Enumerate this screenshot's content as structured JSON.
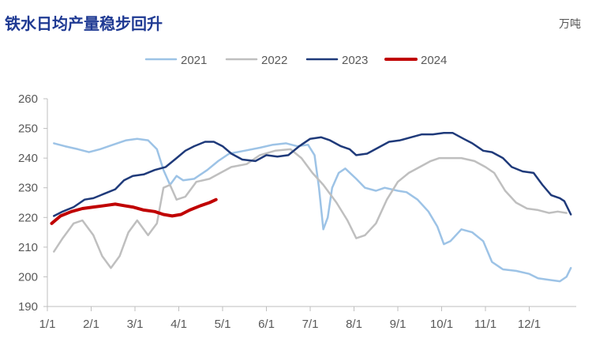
{
  "chart_data": {
    "type": "line",
    "title": "铁水日均产量稳步回升",
    "unit": "万吨",
    "xlabel": "",
    "ylabel": "",
    "ylim": [
      190,
      260
    ],
    "yticks": [
      190,
      200,
      210,
      220,
      230,
      240,
      250,
      260
    ],
    "xlim": [
      0,
      12
    ],
    "xticks": [
      {
        "pos": 0,
        "label": "1/1"
      },
      {
        "pos": 1,
        "label": "2/1"
      },
      {
        "pos": 2,
        "label": "3/1"
      },
      {
        "pos": 3,
        "label": "4/1"
      },
      {
        "pos": 4,
        "label": "5/1"
      },
      {
        "pos": 5,
        "label": "6/1"
      },
      {
        "pos": 6,
        "label": "7/1"
      },
      {
        "pos": 7,
        "label": "8/1"
      },
      {
        "pos": 8,
        "label": "9/1"
      },
      {
        "pos": 9,
        "label": "10/1"
      },
      {
        "pos": 10,
        "label": "11/1"
      },
      {
        "pos": 11,
        "label": "12/1"
      }
    ],
    "grid": false,
    "legend": "top-center",
    "series": [
      {
        "name": "2021",
        "color": "#9dc3e6",
        "width": 2.5,
        "points": [
          [
            0.15,
            245
          ],
          [
            0.4,
            244
          ],
          [
            0.7,
            243
          ],
          [
            0.95,
            242
          ],
          [
            1.2,
            243
          ],
          [
            1.5,
            244.5
          ],
          [
            1.8,
            246
          ],
          [
            2.05,
            246.5
          ],
          [
            2.3,
            246
          ],
          [
            2.5,
            243
          ],
          [
            2.65,
            236
          ],
          [
            2.8,
            231
          ],
          [
            2.95,
            234
          ],
          [
            3.1,
            232.5
          ],
          [
            3.35,
            233
          ],
          [
            3.65,
            236
          ],
          [
            3.9,
            239
          ],
          [
            4.15,
            241.5
          ],
          [
            4.5,
            242.5
          ],
          [
            4.85,
            243.5
          ],
          [
            5.15,
            244.5
          ],
          [
            5.45,
            245
          ],
          [
            5.7,
            244
          ],
          [
            5.95,
            244.5
          ],
          [
            6.1,
            241
          ],
          [
            6.2,
            230
          ],
          [
            6.3,
            216
          ],
          [
            6.4,
            220
          ],
          [
            6.5,
            230
          ],
          [
            6.65,
            235
          ],
          [
            6.8,
            236.5
          ],
          [
            7.05,
            233
          ],
          [
            7.25,
            230
          ],
          [
            7.5,
            229
          ],
          [
            7.7,
            230
          ],
          [
            8.0,
            229
          ],
          [
            8.2,
            228.5
          ],
          [
            8.45,
            226
          ],
          [
            8.7,
            222
          ],
          [
            8.9,
            217
          ],
          [
            9.05,
            211
          ],
          [
            9.2,
            212
          ],
          [
            9.45,
            216
          ],
          [
            9.7,
            215
          ],
          [
            9.95,
            212
          ],
          [
            10.15,
            205
          ],
          [
            10.4,
            202.5
          ],
          [
            10.7,
            202
          ],
          [
            11.0,
            201
          ],
          [
            11.2,
            199.5
          ],
          [
            11.45,
            199
          ],
          [
            11.7,
            198.5
          ],
          [
            11.85,
            200
          ],
          [
            11.95,
            203
          ]
        ]
      },
      {
        "name": "2022",
        "color": "#bfbfbf",
        "width": 2.5,
        "points": [
          [
            0.15,
            208.5
          ],
          [
            0.35,
            213
          ],
          [
            0.6,
            218
          ],
          [
            0.8,
            219
          ],
          [
            1.05,
            214
          ],
          [
            1.25,
            207
          ],
          [
            1.45,
            203
          ],
          [
            1.65,
            207
          ],
          [
            1.85,
            215
          ],
          [
            2.05,
            219
          ],
          [
            2.3,
            214
          ],
          [
            2.5,
            218
          ],
          [
            2.65,
            230
          ],
          [
            2.8,
            231
          ],
          [
            2.95,
            226
          ],
          [
            3.15,
            227
          ],
          [
            3.4,
            232
          ],
          [
            3.7,
            233
          ],
          [
            3.95,
            235
          ],
          [
            4.2,
            237
          ],
          [
            4.55,
            238
          ],
          [
            4.85,
            241
          ],
          [
            5.2,
            242.5
          ],
          [
            5.55,
            243
          ],
          [
            5.8,
            240
          ],
          [
            6.05,
            235
          ],
          [
            6.3,
            231
          ],
          [
            6.6,
            225
          ],
          [
            6.85,
            219
          ],
          [
            7.05,
            213
          ],
          [
            7.25,
            214
          ],
          [
            7.5,
            218
          ],
          [
            7.75,
            226
          ],
          [
            8.0,
            232
          ],
          [
            8.25,
            235
          ],
          [
            8.5,
            237
          ],
          [
            8.75,
            239
          ],
          [
            8.95,
            240
          ],
          [
            9.2,
            240
          ],
          [
            9.45,
            240
          ],
          [
            9.75,
            239
          ],
          [
            10.0,
            237
          ],
          [
            10.2,
            235
          ],
          [
            10.45,
            229
          ],
          [
            10.7,
            225
          ],
          [
            10.95,
            223
          ],
          [
            11.2,
            222.5
          ],
          [
            11.45,
            221.5
          ],
          [
            11.65,
            222
          ],
          [
            11.85,
            221.5
          ]
        ]
      },
      {
        "name": "2023",
        "color": "#1f3a7a",
        "width": 2.5,
        "points": [
          [
            0.15,
            220.5
          ],
          [
            0.35,
            222
          ],
          [
            0.6,
            223.5
          ],
          [
            0.85,
            226
          ],
          [
            1.05,
            226.5
          ],
          [
            1.3,
            228
          ],
          [
            1.55,
            229.5
          ],
          [
            1.75,
            232.5
          ],
          [
            1.95,
            234
          ],
          [
            2.2,
            234.5
          ],
          [
            2.45,
            236
          ],
          [
            2.7,
            237
          ],
          [
            2.95,
            240
          ],
          [
            3.15,
            242.5
          ],
          [
            3.35,
            244
          ],
          [
            3.6,
            245.5
          ],
          [
            3.8,
            245.5
          ],
          [
            4.0,
            244
          ],
          [
            4.2,
            241.5
          ],
          [
            4.45,
            239.5
          ],
          [
            4.75,
            239
          ],
          [
            5.0,
            241
          ],
          [
            5.25,
            240.5
          ],
          [
            5.5,
            241
          ],
          [
            5.75,
            244
          ],
          [
            6.0,
            246.5
          ],
          [
            6.25,
            247
          ],
          [
            6.45,
            246
          ],
          [
            6.7,
            244
          ],
          [
            6.9,
            243
          ],
          [
            7.05,
            241
          ],
          [
            7.3,
            241.5
          ],
          [
            7.55,
            243.5
          ],
          [
            7.8,
            245.5
          ],
          [
            8.05,
            246
          ],
          [
            8.3,
            247
          ],
          [
            8.55,
            248
          ],
          [
            8.8,
            248
          ],
          [
            9.05,
            248.5
          ],
          [
            9.25,
            248.5
          ],
          [
            9.5,
            246.5
          ],
          [
            9.7,
            245
          ],
          [
            9.95,
            242.5
          ],
          [
            10.15,
            242
          ],
          [
            10.4,
            240
          ],
          [
            10.6,
            237
          ],
          [
            10.85,
            235.5
          ],
          [
            11.1,
            235
          ],
          [
            11.3,
            231
          ],
          [
            11.5,
            227.5
          ],
          [
            11.7,
            226.5
          ],
          [
            11.8,
            225.5
          ],
          [
            11.95,
            221
          ]
        ]
      },
      {
        "name": "2024",
        "color": "#c00000",
        "width": 4,
        "points": [
          [
            0.1,
            218
          ],
          [
            0.3,
            220.5
          ],
          [
            0.55,
            222
          ],
          [
            0.8,
            223
          ],
          [
            1.05,
            223.5
          ],
          [
            1.3,
            224
          ],
          [
            1.55,
            224.5
          ],
          [
            1.75,
            224
          ],
          [
            1.95,
            223.5
          ],
          [
            2.2,
            222.5
          ],
          [
            2.45,
            222
          ],
          [
            2.65,
            221
          ],
          [
            2.85,
            220.5
          ],
          [
            3.05,
            221
          ],
          [
            3.25,
            222.5
          ],
          [
            3.5,
            224
          ],
          [
            3.7,
            225
          ],
          [
            3.85,
            226
          ]
        ]
      }
    ]
  }
}
